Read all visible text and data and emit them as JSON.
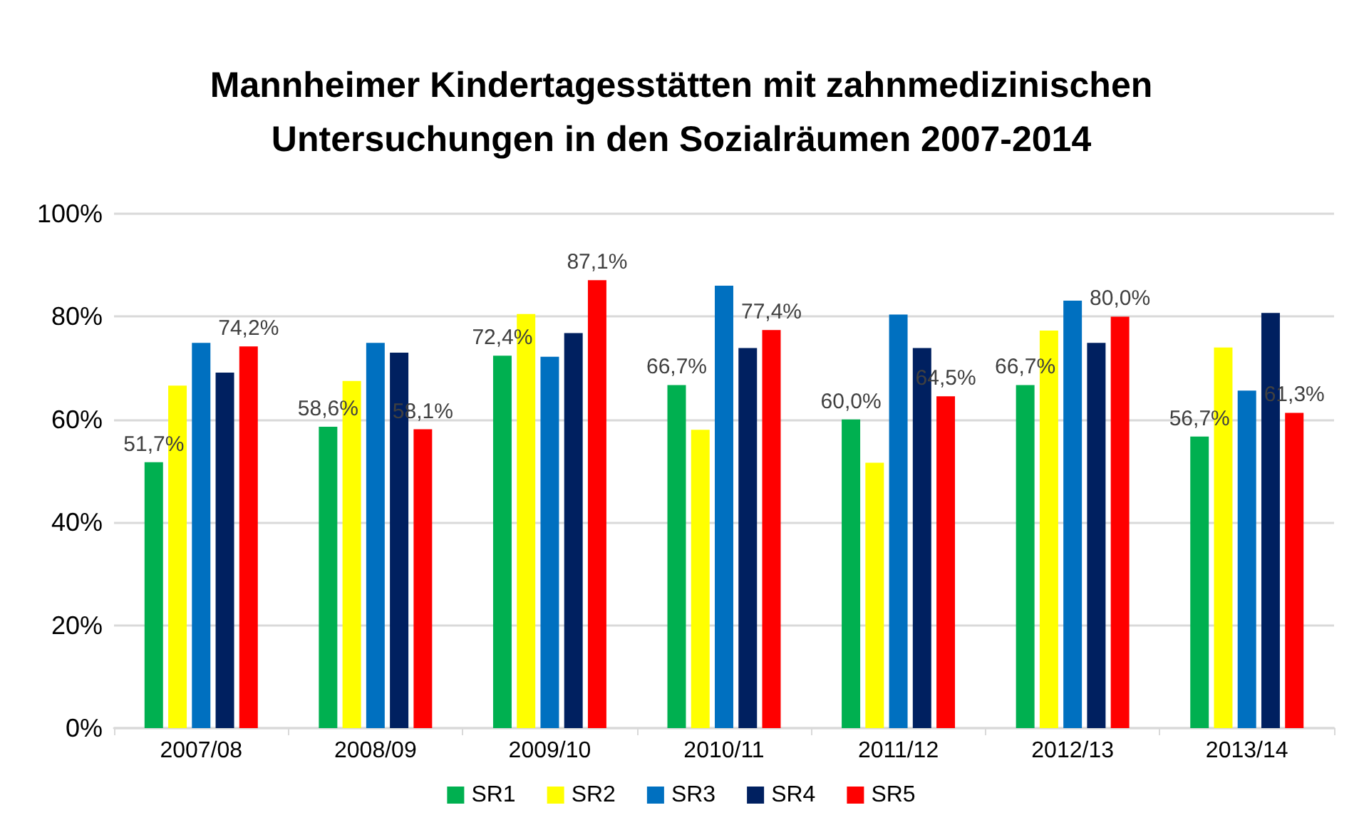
{
  "chart_data": {
    "type": "bar",
    "title": "Mannheimer Kindertagesstätten mit zahnmedizinischen\nUntersuchungen in den Sozialräumen 2007-2014",
    "categories": [
      "2007/08",
      "2008/09",
      "2009/10",
      "2010/11",
      "2011/12",
      "2012/13",
      "2013/14"
    ],
    "series": [
      {
        "name": "SR1",
        "color": "#00b050",
        "values": [
          51.7,
          58.6,
          72.4,
          66.7,
          60.0,
          66.7,
          56.7
        ],
        "value_labels": [
          "51,7%",
          "58,6%",
          "72,4%",
          "66,7%",
          "60,0%",
          "66,7%",
          "56,7%"
        ]
      },
      {
        "name": "SR2",
        "color": "#ffff00",
        "values": [
          66.6,
          67.5,
          80.5,
          58.0,
          51.6,
          77.3,
          74.0
        ]
      },
      {
        "name": "SR3",
        "color": "#0070c0",
        "values": [
          74.9,
          74.9,
          72.2,
          86.0,
          80.4,
          83.1,
          65.6
        ]
      },
      {
        "name": "SR4",
        "color": "#002060",
        "values": [
          69.1,
          73.0,
          76.8,
          73.9,
          73.9,
          74.9,
          80.7
        ]
      },
      {
        "name": "SR5",
        "color": "#ff0000",
        "values": [
          74.2,
          58.1,
          87.1,
          77.4,
          64.5,
          80.0,
          61.3
        ],
        "value_labels": [
          "74,2%",
          "58,1%",
          "87,1%",
          "77,4%",
          "64,5%",
          "80,0%",
          "61,3%"
        ]
      }
    ],
    "ylim": [
      0,
      100
    ],
    "yticks": [
      {
        "value": 0,
        "label": "0%"
      },
      {
        "value": 20,
        "label": "20%"
      },
      {
        "value": 40,
        "label": "40%"
      },
      {
        "value": 60,
        "label": "60%"
      },
      {
        "value": 80,
        "label": "80%"
      },
      {
        "value": 100,
        "label": "100%"
      }
    ],
    "grid": "y",
    "legend": "bottom"
  }
}
